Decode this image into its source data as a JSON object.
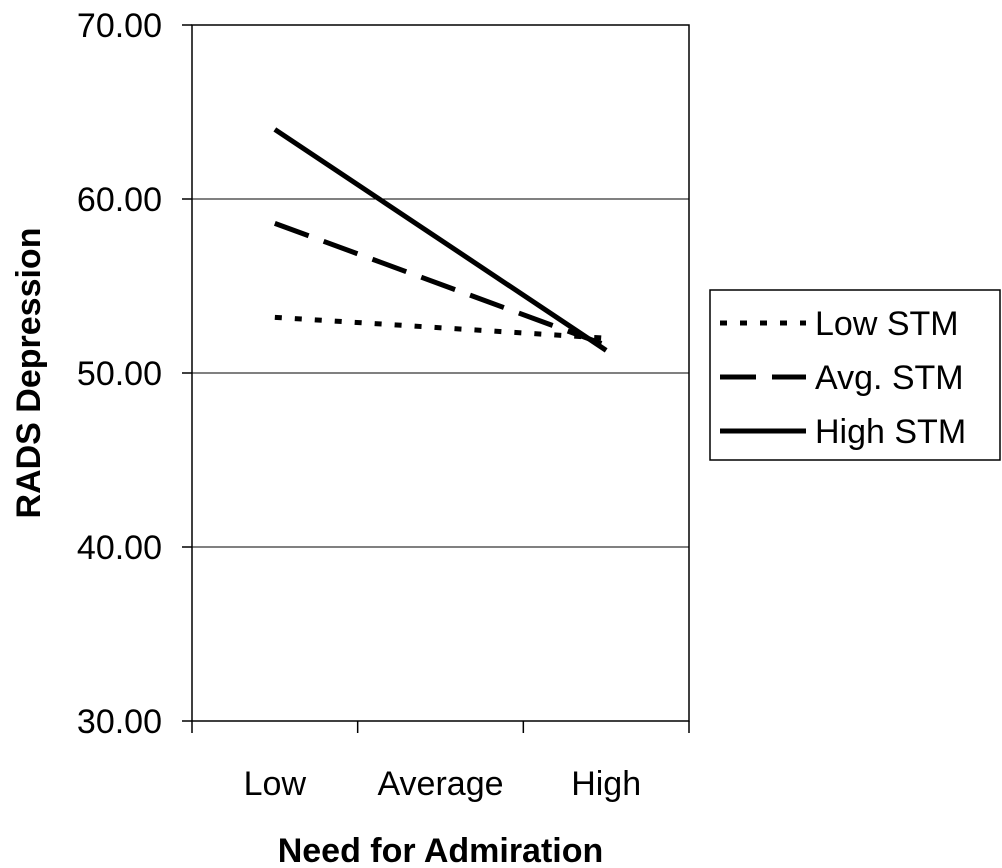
{
  "chart_data": {
    "type": "line",
    "title": "",
    "xlabel": "Need for Admiration",
    "ylabel": "RADS Depression",
    "categories": [
      "Low",
      "Average",
      "High"
    ],
    "ylim": [
      30,
      70
    ],
    "yticks": [
      "30.00",
      "40.00",
      "50.00",
      "60.00",
      "70.00"
    ],
    "grid": true,
    "legend_position": "right",
    "series": [
      {
        "name": "Low STM",
        "style": "dotted",
        "x": [
          0,
          2
        ],
        "values": [
          53.2,
          52.0
        ]
      },
      {
        "name": "Avg. STM",
        "style": "dashed",
        "x": [
          0,
          2
        ],
        "values": [
          58.6,
          51.6
        ]
      },
      {
        "name": "High STM",
        "style": "solid",
        "x": [
          0,
          2
        ],
        "values": [
          64.0,
          51.3
        ]
      }
    ]
  }
}
